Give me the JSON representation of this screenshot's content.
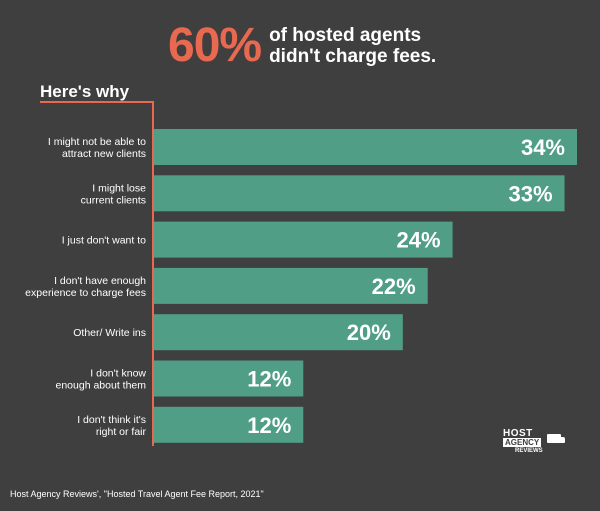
{
  "header": {
    "big_number": "60%",
    "headline_line1": "of hosted agents",
    "headline_line2": "didn't charge fees."
  },
  "section_title": "Here's why",
  "source": "Host Agency Reviews', \"Hosted Travel Agent Fee Report, 2021\"",
  "logo": {
    "line1": "HOST",
    "line2": "AGENCY",
    "line3": "REVIEWS"
  },
  "colors": {
    "bar": "#4f9e85",
    "accent": "#e8694f",
    "background": "#3f3f3f"
  },
  "chart_data": {
    "type": "bar",
    "orientation": "horizontal",
    "categories": [
      [
        "I might not be able to",
        "attract new clients"
      ],
      [
        "I might lose",
        "current clients"
      ],
      [
        "I just don't want to"
      ],
      [
        "I don't have enough",
        "experience to charge fees"
      ],
      [
        "Other/ Write ins"
      ],
      [
        "I don't know",
        "enough about them"
      ],
      [
        "I don't think it's",
        "right or fair"
      ]
    ],
    "values": [
      34,
      33,
      24,
      22,
      20,
      12,
      12
    ],
    "value_labels": [
      "34%",
      "33%",
      "24%",
      "22%",
      "20%",
      "12%",
      "12%"
    ],
    "unit": "%",
    "xlim": [
      0,
      34
    ]
  }
}
